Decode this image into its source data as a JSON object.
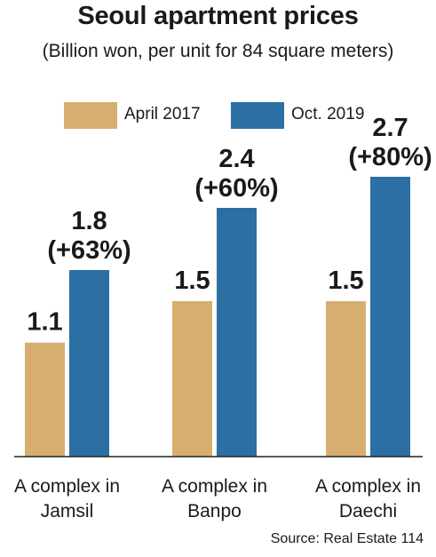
{
  "title": "Seoul apartment prices",
  "subtitle": "(Billion won, per unit for 84 square meters)",
  "source": "Source: Real Estate 114",
  "colors": {
    "april": "#d7ae70",
    "oct": "#2b6fa3",
    "axis": "#222222"
  },
  "chart_data": {
    "type": "bar",
    "title": "Seoul apartment prices",
    "subtitle": "(Billion won, per unit for 84 square meters)",
    "categories": [
      [
        "A complex in",
        "Jamsil"
      ],
      [
        "A complex in",
        "Banpo"
      ],
      [
        "A complex in",
        "Daechi"
      ]
    ],
    "series": [
      {
        "name": "April 2017",
        "values": [
          1.1,
          1.5,
          1.5
        ],
        "labels": [
          "1.1",
          "1.5",
          "1.5"
        ]
      },
      {
        "name": "Oct. 2019",
        "values": [
          1.8,
          2.4,
          2.7
        ],
        "labels": [
          "1.8",
          "2.4",
          "2.7"
        ],
        "change_labels": [
          "(+63%)",
          "(+60%)",
          "(+80%)"
        ]
      }
    ],
    "ylim": [
      0,
      3.0
    ],
    "grid": false,
    "legend_position": "top"
  }
}
